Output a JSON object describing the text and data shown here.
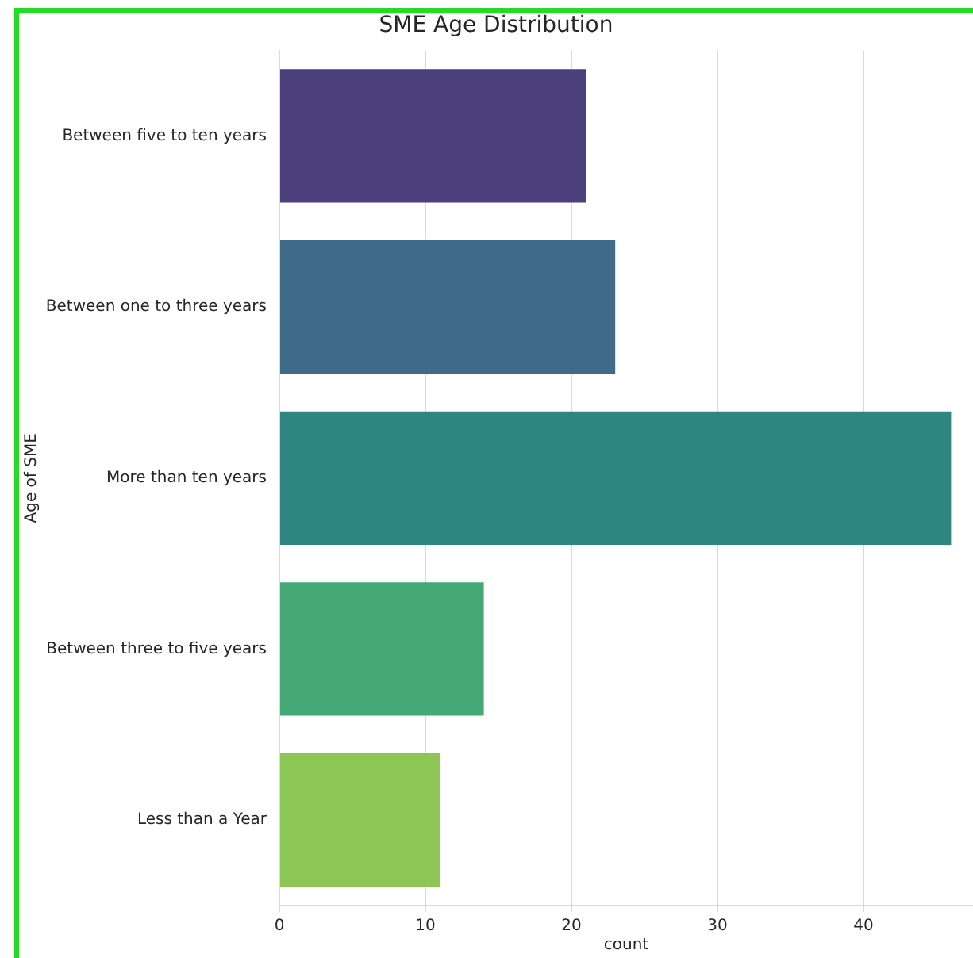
{
  "chart_data": {
    "type": "bar",
    "orientation": "horizontal",
    "title": "SME Age Distribution",
    "xlabel": "count",
    "ylabel": "Age of SME",
    "categories": [
      "Between five to ten years",
      "Between one to three years",
      "More than ten years",
      "Between three to five years",
      "Less than a Year"
    ],
    "values": [
      21,
      23,
      46,
      14,
      11
    ],
    "colors": [
      "#4b3f7c",
      "#3f6a88",
      "#2e8680",
      "#45a877",
      "#8ec655"
    ],
    "xlim": [
      0,
      47.5
    ],
    "xticks": [
      0,
      10,
      20,
      30,
      40
    ],
    "grid": "x",
    "legend": false
  }
}
